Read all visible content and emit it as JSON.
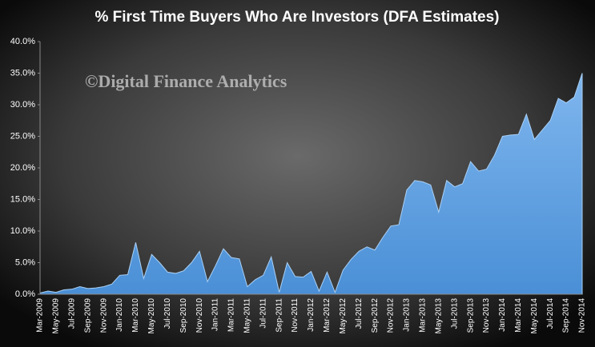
{
  "chart_data": {
    "type": "area",
    "title": "% First Time Buyers Who Are Investors (DFA Estimates)",
    "annotation": "©Digital Finance Analytics",
    "color": "#5b9bd5",
    "categories": [
      "Mar-2009",
      null,
      "May-2009",
      null,
      "Jul-2009",
      null,
      "Sep-2009",
      null,
      "Nov-2009",
      null,
      "Jan-2010",
      null,
      "Mar-2010",
      null,
      "May-2010",
      null,
      "Jul-2010",
      null,
      "Sep-2010",
      null,
      "Nov-2010",
      null,
      "Jan-2011",
      null,
      "Mar-2011",
      null,
      "May-2011",
      null,
      "Jul-2011",
      null,
      "Sep-2011",
      null,
      "Nov-2011",
      null,
      "Jan-2012",
      null,
      "Mar-2012",
      null,
      "May-2012",
      null,
      "Jul-2012",
      null,
      "Sep-2012",
      null,
      "Nov-2012",
      null,
      "Jan-2013",
      null,
      "Mar-2013",
      null,
      "May-2013",
      null,
      "Jul-2013",
      null,
      "Sep-2013",
      null,
      "Nov-2013",
      null,
      "Jan-2014",
      null,
      "Mar-2014",
      null,
      "May-2014",
      null,
      "Jul-2014",
      null,
      "Sep-2014",
      null,
      "Nov-2014"
    ],
    "values": [
      0.2,
      0.5,
      0.3,
      0.7,
      0.8,
      1.2,
      0.9,
      1.0,
      1.2,
      1.6,
      3.0,
      3.1,
      8.2,
      2.5,
      6.3,
      5.0,
      3.5,
      3.3,
      3.7,
      5.0,
      6.8,
      2.0,
      4.5,
      7.2,
      5.8,
      5.6,
      1.2,
      2.3,
      3.0,
      5.9,
      0.3,
      5.0,
      2.8,
      2.7,
      3.6,
      0.5,
      3.5,
      0.3,
      3.8,
      5.5,
      6.8,
      7.5,
      7.0,
      9.0,
      10.8,
      11.0,
      16.5,
      18.0,
      17.8,
      17.3,
      13.0,
      18.0,
      17.0,
      17.5,
      21.0,
      19.5,
      19.8,
      22.0,
      25.0,
      25.2,
      25.3,
      28.5,
      24.5,
      26.0,
      27.5,
      31.0,
      30.3,
      31.2,
      35.0
    ],
    "ylim": [
      0,
      40
    ],
    "yticks": [
      {
        "value": 0,
        "label": "0.0%"
      },
      {
        "value": 5,
        "label": "5.0%"
      },
      {
        "value": 10,
        "label": "10.0%"
      },
      {
        "value": 15,
        "label": "15.0%"
      },
      {
        "value": 20,
        "label": "20.0%"
      },
      {
        "value": 25,
        "label": "25.0%"
      },
      {
        "value": 30,
        "label": "30.0%"
      },
      {
        "value": 35,
        "label": "35.0%"
      },
      {
        "value": 40,
        "label": "40.0%"
      }
    ],
    "grid": false
  }
}
